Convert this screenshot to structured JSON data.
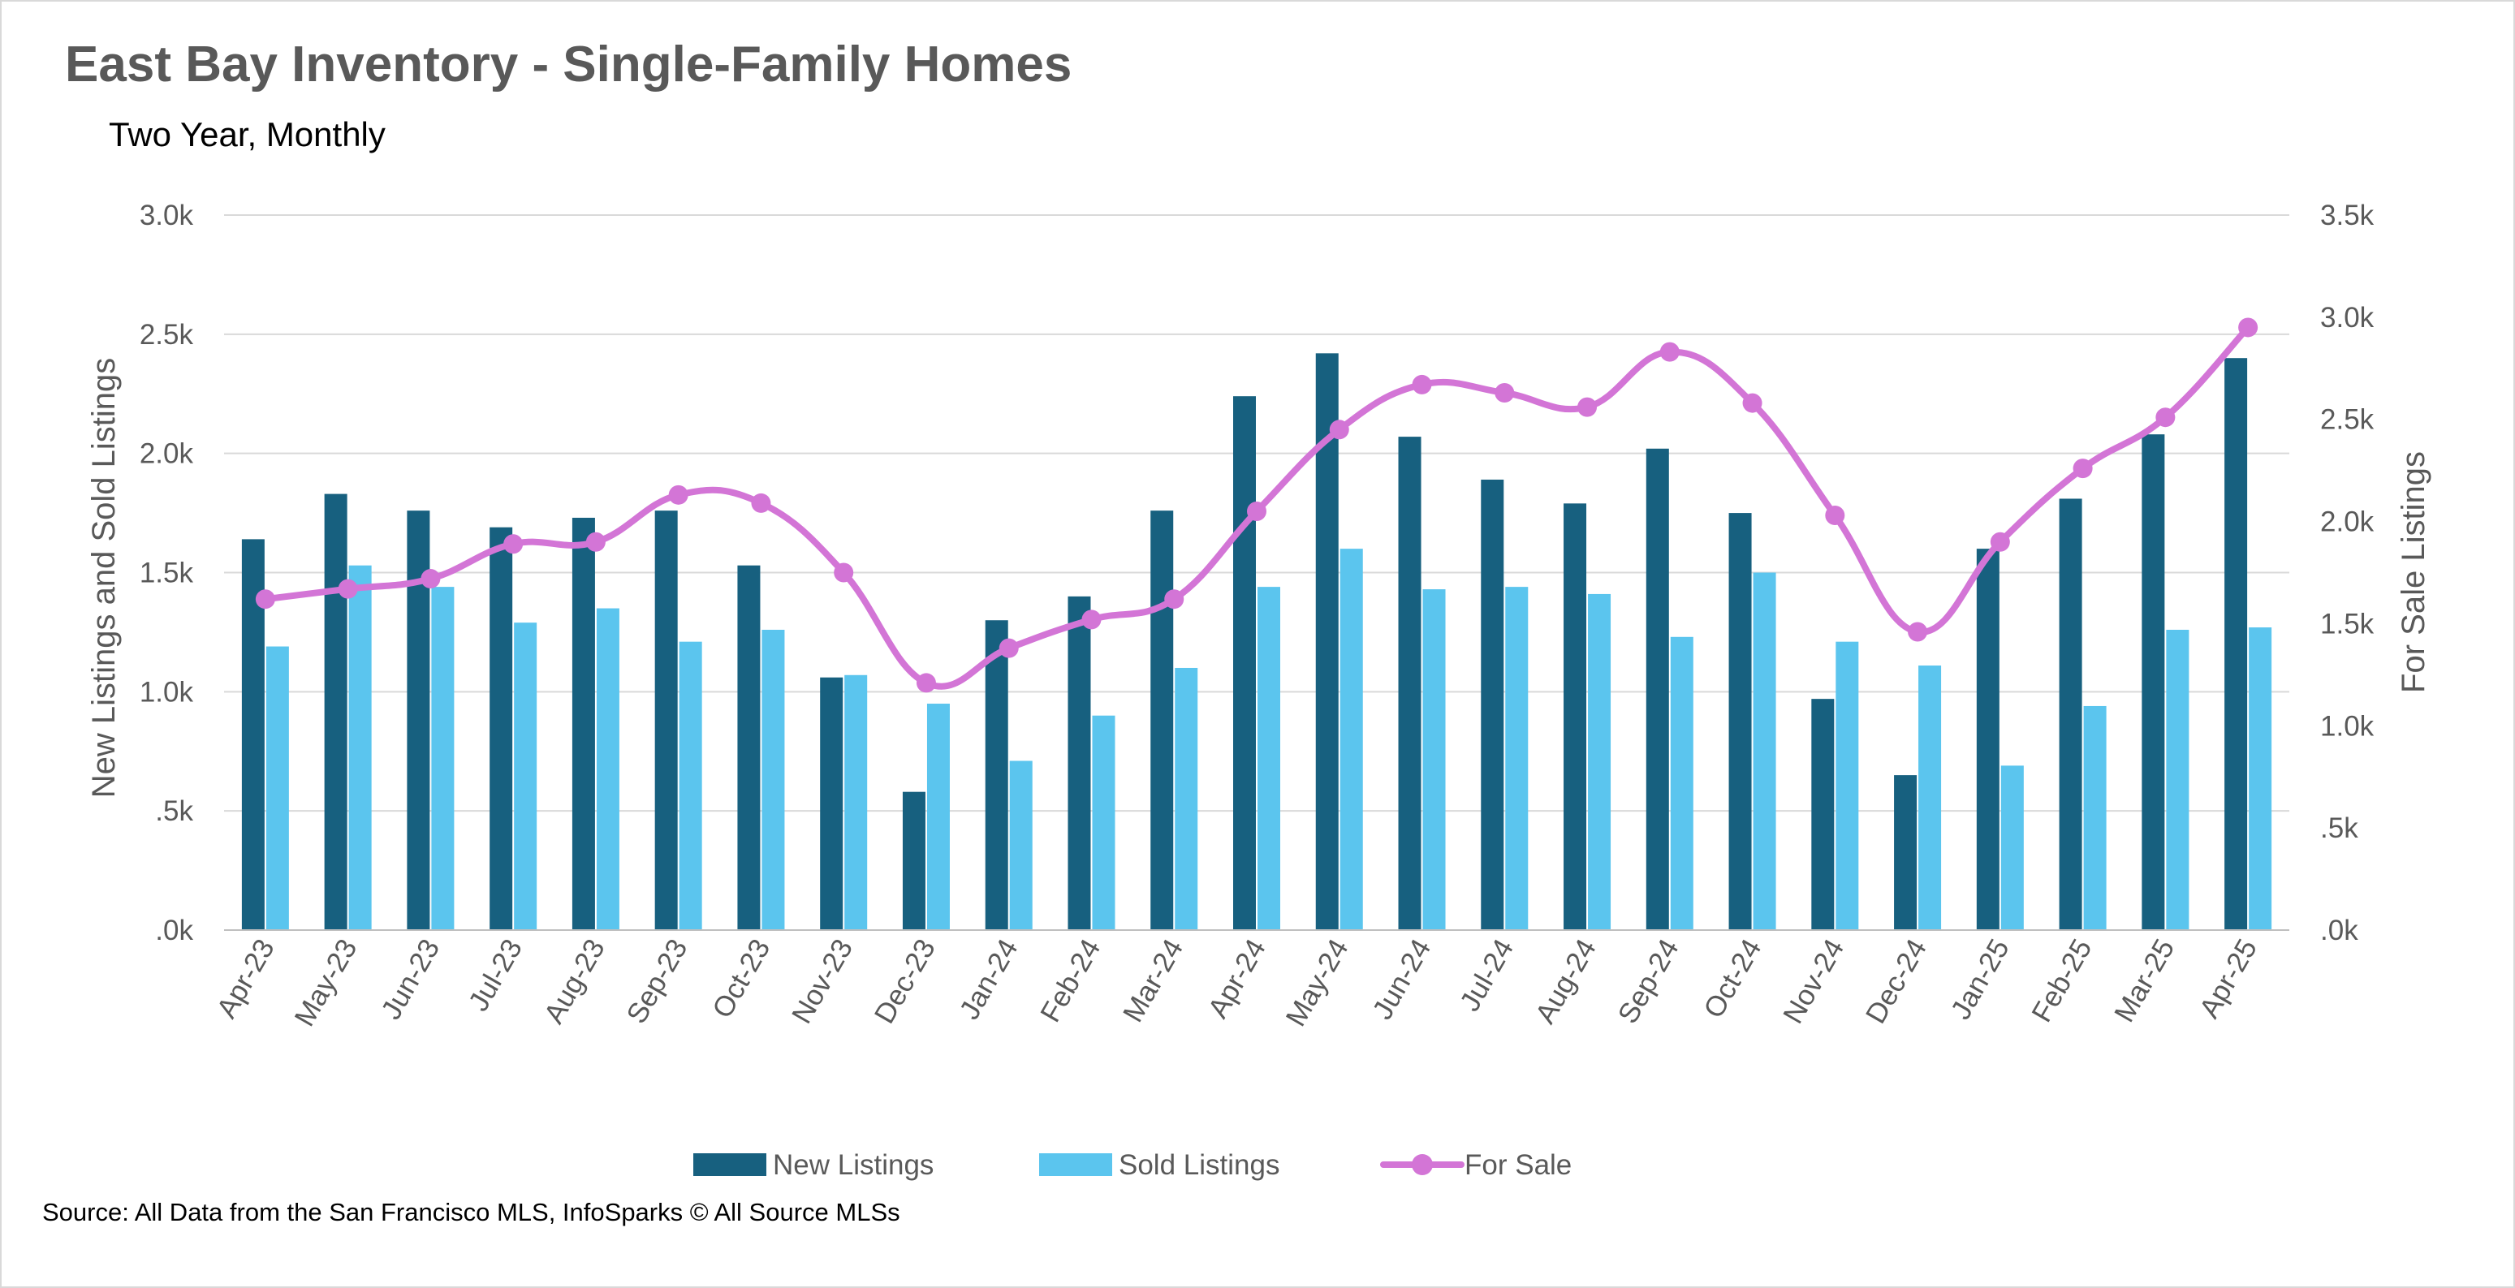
{
  "colors": {
    "new_listings": "#17607f",
    "sold_listings": "#5bc5ee",
    "for_sale": "#d375d6",
    "grid": "#d9d9d9",
    "text": "#595959"
  },
  "source_note": "Source: All Data from the San Francisco MLS, InfoSparks © All Source MLSs",
  "chart_data": {
    "type": "bar",
    "title": "East Bay Inventory - Single-Family Homes",
    "subtitle": "Two Year, Monthly",
    "categories": [
      "Apr-23",
      "May-23",
      "Jun-23",
      "Jul-23",
      "Aug-23",
      "Sep-23",
      "Oct-23",
      "Nov-23",
      "Dec-23",
      "Jan-24",
      "Feb-24",
      "Mar-24",
      "Apr-24",
      "May-24",
      "Jun-24",
      "Jul-24",
      "Aug-24",
      "Sep-24",
      "Oct-24",
      "Nov-24",
      "Dec-24",
      "Jan-25",
      "Feb-25",
      "Mar-25",
      "Apr-25"
    ],
    "series": [
      {
        "name": "New Listings",
        "type": "bar",
        "axis": "left",
        "values": [
          1640,
          1830,
          1760,
          1690,
          1730,
          1760,
          1530,
          1060,
          580,
          1300,
          1400,
          1760,
          2240,
          2420,
          2070,
          1890,
          1790,
          2020,
          1750,
          970,
          650,
          1600,
          1810,
          2080,
          2400
        ]
      },
      {
        "name": "Sold Listings",
        "type": "bar",
        "axis": "left",
        "values": [
          1190,
          1530,
          1440,
          1290,
          1350,
          1210,
          1260,
          1070,
          950,
          710,
          900,
          1100,
          1440,
          1600,
          1430,
          1440,
          1410,
          1230,
          1500,
          1210,
          1110,
          690,
          940,
          1260,
          1270
        ]
      },
      {
        "name": "For Sale",
        "type": "line",
        "axis": "right",
        "values": [
          1620,
          1670,
          1720,
          1890,
          1900,
          2130,
          2090,
          1750,
          1210,
          1380,
          1520,
          1620,
          2050,
          2450,
          2670,
          2630,
          2560,
          2830,
          2580,
          2030,
          1460,
          1900,
          2260,
          2510,
          2950
        ]
      }
    ],
    "ylabel": "New Listings and Sold Listings",
    "y2label": "For Sale Listings",
    "ylim": [
      0,
      3000
    ],
    "y2lim": [
      0,
      3500
    ],
    "yticks": [
      ".0k",
      ".5k",
      "1.0k",
      "1.5k",
      "2.0k",
      "2.5k",
      "3.0k"
    ],
    "y2ticks": [
      ".0k",
      ".5k",
      "1.0k",
      "1.5k",
      "2.0k",
      "2.5k",
      "3.0k",
      "3.5k"
    ],
    "grid": true,
    "legend_position": "bottom"
  }
}
